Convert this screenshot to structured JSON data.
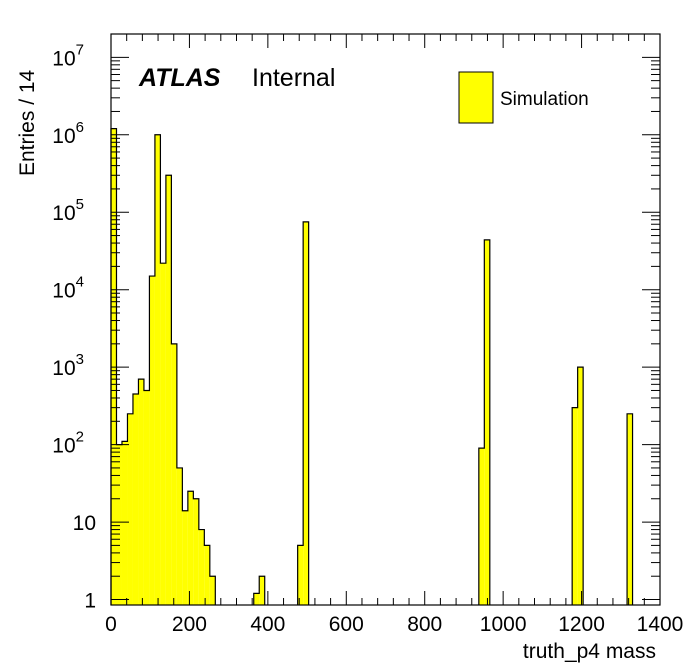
{
  "chart_data": {
    "type": "bar",
    "xlabel": "truth_p4 mass",
    "ylabel": "Entries / 14",
    "xlim": [
      0,
      1400
    ],
    "ylim": [
      0.85,
      20000000
    ],
    "yscale": "log",
    "bin_width": 14,
    "fill_color": "#ffff00",
    "edge_color": "#000000",
    "x_ticks": [
      "0",
      "200",
      "400",
      "600",
      "800",
      "1000",
      "1200",
      "1400"
    ],
    "y_ticks": [
      {
        "value": 1,
        "base": "1",
        "exp": ""
      },
      {
        "value": 10,
        "base": "10",
        "exp": ""
      },
      {
        "value": 100,
        "base": "10",
        "exp": "2"
      },
      {
        "value": 1000,
        "base": "10",
        "exp": "3"
      },
      {
        "value": 10000,
        "base": "10",
        "exp": "4"
      },
      {
        "value": 100000,
        "base": "10",
        "exp": "5"
      },
      {
        "value": 1000000,
        "base": "10",
        "exp": "6"
      },
      {
        "value": 10000000,
        "base": "10",
        "exp": "7"
      }
    ],
    "series": [
      {
        "name": "Simulation",
        "bins": [
          {
            "x": 0,
            "y": 1200000
          },
          {
            "x": 14,
            "y": 100
          },
          {
            "x": 28,
            "y": 110
          },
          {
            "x": 42,
            "y": 250
          },
          {
            "x": 56,
            "y": 450
          },
          {
            "x": 70,
            "y": 700
          },
          {
            "x": 84,
            "y": 500
          },
          {
            "x": 98,
            "y": 15000
          },
          {
            "x": 112,
            "y": 1000000
          },
          {
            "x": 126,
            "y": 22000
          },
          {
            "x": 140,
            "y": 300000
          },
          {
            "x": 154,
            "y": 2000
          },
          {
            "x": 168,
            "y": 50
          },
          {
            "x": 182,
            "y": 14
          },
          {
            "x": 196,
            "y": 25
          },
          {
            "x": 210,
            "y": 20
          },
          {
            "x": 224,
            "y": 8
          },
          {
            "x": 238,
            "y": 5
          },
          {
            "x": 252,
            "y": 2
          },
          {
            "x": 364,
            "y": 1.2
          },
          {
            "x": 378,
            "y": 2
          },
          {
            "x": 476,
            "y": 5
          },
          {
            "x": 490,
            "y": 75000
          },
          {
            "x": 938,
            "y": 90
          },
          {
            "x": 952,
            "y": 44000
          },
          {
            "x": 1176,
            "y": 300
          },
          {
            "x": 1190,
            "y": 1000
          },
          {
            "x": 1316,
            "y": 250
          }
        ]
      }
    ],
    "annotations": {
      "atlas": "ATLAS",
      "label": "Internal"
    },
    "legend_position": "top-right"
  }
}
